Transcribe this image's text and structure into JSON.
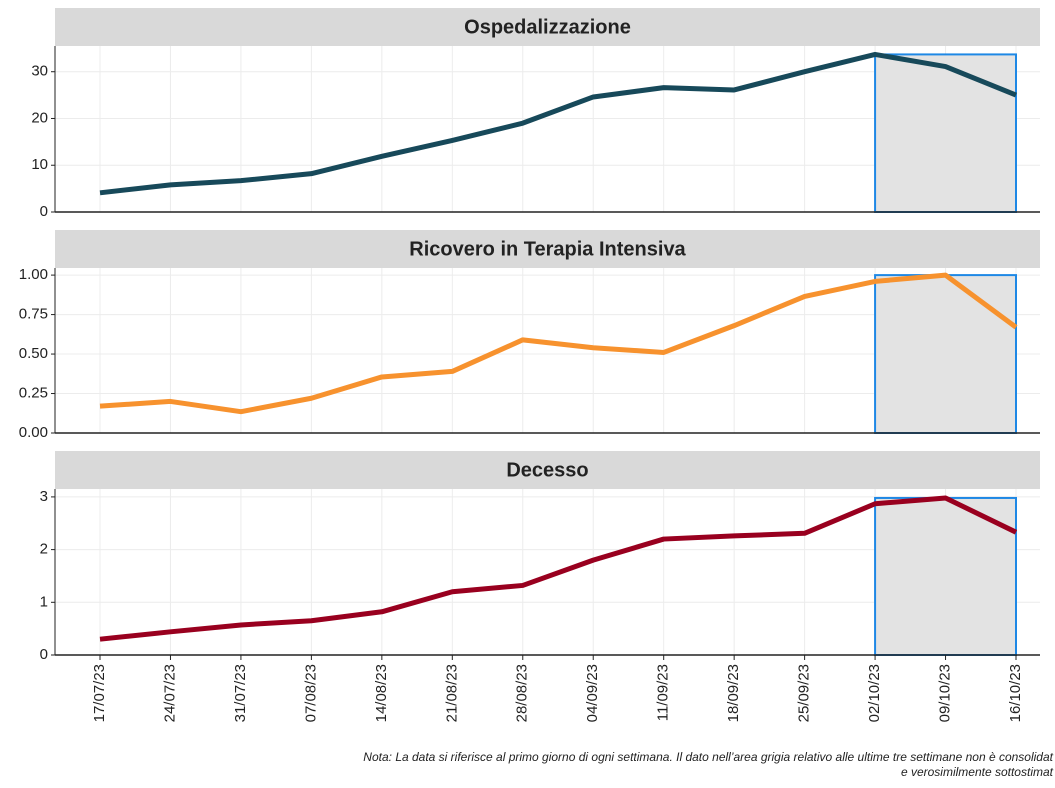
{
  "chart_data": [
    {
      "type": "line",
      "title": "Ospedalizzazione",
      "categories": [
        "17/07/23",
        "24/07/23",
        "31/07/23",
        "07/08/23",
        "14/08/23",
        "21/08/23",
        "28/08/23",
        "04/09/23",
        "11/09/23",
        "18/09/23",
        "25/09/23",
        "02/10/23",
        "09/10/23",
        "16/10/23"
      ],
      "series": [
        {
          "color": "#17495a",
          "values": [
            4.1,
            5.8,
            6.7,
            8.2,
            11.9,
            15.3,
            19.0,
            24.6,
            26.6,
            26.1,
            30.0,
            33.7,
            31.1,
            25.0
          ]
        }
      ],
      "ylim": [
        0,
        35.5
      ],
      "yticks": [
        0,
        10,
        20,
        30
      ],
      "grid": true
    },
    {
      "type": "line",
      "title": "Ricovero in Terapia Intensiva",
      "categories": [
        "17/07/23",
        "24/07/23",
        "31/07/23",
        "07/08/23",
        "14/08/23",
        "21/08/23",
        "28/08/23",
        "04/09/23",
        "11/09/23",
        "18/09/23",
        "25/09/23",
        "02/10/23",
        "09/10/23",
        "16/10/23"
      ],
      "series": [
        {
          "color": "#f7922e",
          "values": [
            0.17,
            0.2,
            0.135,
            0.22,
            0.355,
            0.39,
            0.59,
            0.54,
            0.51,
            0.68,
            0.865,
            0.96,
            1.0,
            0.67
          ]
        }
      ],
      "ylim": [
        0,
        1.045
      ],
      "yticks": [
        {
          "value": 0,
          "label": "0.00"
        },
        {
          "value": 0.25,
          "label": "0.25"
        },
        {
          "value": 0.5,
          "label": "0.50"
        },
        {
          "value": 0.75,
          "label": "0.75"
        },
        {
          "value": 1,
          "label": "1.00"
        }
      ],
      "grid": true
    },
    {
      "type": "line",
      "title": "Decesso",
      "categories": [
        "17/07/23",
        "24/07/23",
        "31/07/23",
        "07/08/23",
        "14/08/23",
        "21/08/23",
        "28/08/23",
        "04/09/23",
        "11/09/23",
        "18/09/23",
        "25/09/23",
        "02/10/23",
        "09/10/23",
        "16/10/23"
      ],
      "series": [
        {
          "color": "#99001f",
          "values": [
            0.3,
            0.44,
            0.57,
            0.65,
            0.82,
            1.2,
            1.32,
            1.8,
            2.2,
            2.26,
            2.31,
            2.87,
            2.98,
            2.33
          ]
        }
      ],
      "ylim": [
        0,
        3.15
      ],
      "yticks": [
        0,
        1,
        2,
        3
      ],
      "grid": true
    }
  ],
  "note": [
    "Nota: La data si riferisce al primo giorno di ogni settimana. Il dato nell’area grigia relativo alle ultime tre settimane non è consolidat",
    "e verosimilmente sottostimat"
  ]
}
